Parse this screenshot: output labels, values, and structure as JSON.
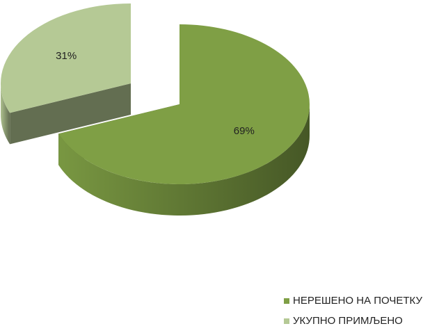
{
  "chart_data": {
    "type": "pie",
    "categories": [
      "НЕРЕШЕНО НА ПОЧЕТКУ",
      "УКУПНО ПРИМЉЕНО"
    ],
    "values": [
      69,
      31
    ],
    "value_labels": [
      "69%",
      "31%"
    ],
    "colors": [
      "#7f9f45",
      "#b5c995"
    ],
    "legend": "bottom-right"
  }
}
